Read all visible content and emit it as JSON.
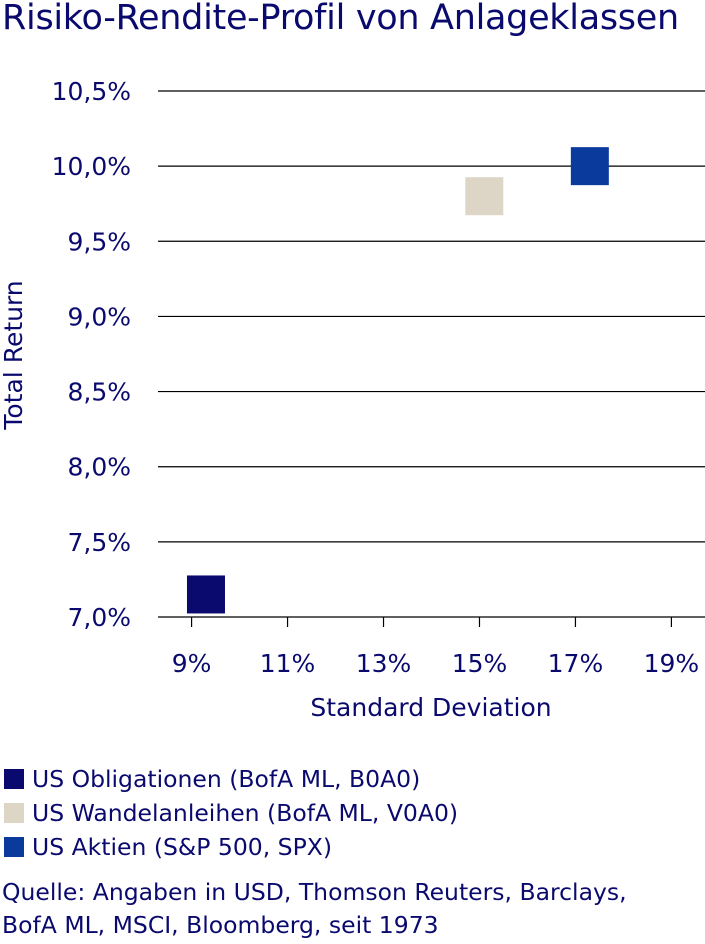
{
  "chart_data": {
    "type": "scatter",
    "title": "Risiko-Rendite-Profil von Anlageklassen",
    "xlabel": "Standard Deviation",
    "ylabel": "Total Return",
    "xlim": [
      8.3,
      19.7
    ],
    "ylim": [
      7.0,
      10.5
    ],
    "x_ticks": [
      9,
      11,
      13,
      15,
      17,
      19
    ],
    "x_tick_labels": [
      "9%",
      "11%",
      "13%",
      "15%",
      "17%",
      "19%"
    ],
    "y_ticks": [
      7.0,
      7.5,
      8.0,
      8.5,
      9.0,
      9.5,
      10.0,
      10.5
    ],
    "y_tick_labels": [
      "7,0%",
      "7,5%",
      "8,0%",
      "8,5%",
      "9,0%",
      "9,5%",
      "10,0%",
      "10,5%"
    ],
    "grid": "horizontal",
    "legend_position": "bottom",
    "series": [
      {
        "name": "US Obligationen (BofA ML, B0A0)",
        "x": 9.3,
        "y": 7.15,
        "color": "#0a0a6e"
      },
      {
        "name": "US Wandelanleihen (BofA ML, V0A0)",
        "x": 15.1,
        "y": 9.8,
        "color": "#ddd6c6"
      },
      {
        "name": "US Aktien (S&P 500, SPX)",
        "x": 17.3,
        "y": 10.0,
        "color": "#0a3a9c"
      }
    ]
  },
  "source": {
    "line1": "Quelle: Angaben in USD, Thomson Reuters, Barclays,",
    "line2": "BofA ML, MSCI, Bloomberg, seit 1973"
  }
}
